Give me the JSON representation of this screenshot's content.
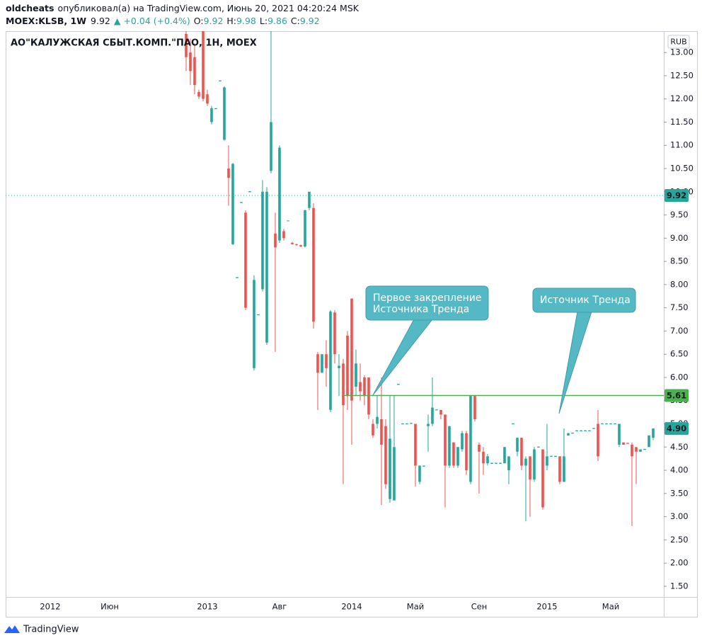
{
  "header": {
    "author": "oldcheats",
    "published": "опубликовал(а) на TradingView.com, Июнь 20, 2021 04:20:24 MSK",
    "symbol": "MOEX:KLSB, 1W",
    "last": "9.92",
    "change": "▲ +0.04 (+0.4%)",
    "ohlc": [
      {
        "key": "O:",
        "value": "9.92"
      },
      {
        "key": "H:",
        "value": "9.98"
      },
      {
        "key": "L:",
        "value": "9.86"
      },
      {
        "key": "C:",
        "value": "9.92"
      }
    ]
  },
  "footer": {
    "brand": "TradingView"
  },
  "chart_data": {
    "type": "candlestick",
    "title": "АО\"КАЛУЖСКАЯ СБЫТ.КОМП.\"ПАО, 1Н, MOEX",
    "currency": "RUB",
    "up_color": "#26a69a",
    "down_color": "#ef5350",
    "categories": [
      null,
      null,
      null,
      null,
      null,
      null,
      null,
      null,
      null,
      null,
      "2012",
      null,
      null,
      null,
      null,
      null,
      null,
      null,
      null,
      null,
      null,
      null,
      null,
      null,
      "Июн",
      null,
      null,
      null,
      null,
      null,
      null,
      null,
      null,
      null,
      null,
      null,
      null,
      null,
      null,
      null,
      null,
      null,
      null,
      null,
      null,
      null,
      null,
      "2013",
      null,
      null,
      null,
      null,
      null,
      null,
      null,
      null,
      null,
      null,
      null,
      null,
      null,
      null,
      null,
      null,
      "Авг",
      null,
      null,
      null,
      null,
      null,
      null,
      null,
      null,
      null,
      null,
      null,
      null,
      null,
      null,
      null,
      null,
      "2014",
      null,
      null,
      null,
      null,
      null,
      null,
      null,
      null,
      null,
      null,
      null,
      null,
      null,
      null,
      "Май",
      null,
      null,
      null,
      null,
      null,
      null,
      null,
      null,
      null,
      null,
      null,
      null,
      null,
      null,
      "Сен",
      null,
      null,
      null,
      null,
      null,
      null,
      null,
      null,
      null,
      null,
      null,
      null,
      null,
      null,
      null,
      "2015",
      null,
      null,
      null,
      null,
      null,
      null,
      null,
      null,
      null,
      null,
      null,
      null,
      null,
      null,
      "Май",
      null,
      null,
      null,
      null,
      null,
      null,
      null,
      null,
      null,
      null,
      null,
      null
    ],
    "open": [
      null,
      null,
      null,
      null,
      null,
      null,
      null,
      null,
      null,
      null,
      null,
      null,
      null,
      null,
      null,
      null,
      null,
      null,
      null,
      null,
      null,
      null,
      null,
      null,
      null,
      null,
      null,
      null,
      null,
      null,
      null,
      null,
      null,
      null,
      null,
      null,
      null,
      null,
      null,
      null,
      null,
      null,
      13.4,
      13.0,
      12.9,
      12.15,
      13.46,
      12.1,
      11.5,
      11.78,
      12.38,
      11.12,
      10.5,
      8.87,
      8.14,
      9.76,
      9.55,
      9.99,
      6.2,
      7.34,
      7.9,
      6.75,
      10.45,
      9.1,
      8.95,
      9.15,
      9.37,
      8.9,
      8.87,
      8.85,
      8.82,
      9.65,
      9.65,
      6.5,
      6.1,
      6.5,
      5.3,
      7.4,
      6.2,
      6.3,
      6.9,
      7.7,
      5.8,
      5.9,
      6.0,
      6.0,
      5.0,
      5.0,
      5.1,
      4.95,
      3.38,
      3.35,
      5.84,
      4.99,
      4.99,
      5.0,
      5.0,
      3.75,
      4.08,
      4.95,
      5.0,
      5.29,
      5.3,
      5.2,
      4.1,
      4.6,
      4.1,
      4.45,
      4.8,
      3.75,
      5.6,
      4.55,
      4.4,
      4.15,
      4.14,
      4.14,
      4.14,
      4.15,
      4.0,
      4.99,
      4.4,
      4.7,
      4.1,
      4.3,
      3.8,
      4.49,
      4.45,
      4.1,
      4.29,
      4.29,
      4.3,
      3.75,
      4.75,
      4.79,
      4.84,
      4.84,
      4.84,
      4.84,
      4.89,
      5.0,
      4.99,
      4.99,
      4.99,
      4.99,
      4.55,
      4.6,
      4.59,
      4.55,
      4.5,
      4.4,
      4.44,
      4.5,
      4.7,
      null,
      null
    ],
    "high": [
      null,
      null,
      null,
      null,
      null,
      null,
      null,
      null,
      null,
      null,
      null,
      null,
      null,
      null,
      null,
      null,
      null,
      null,
      null,
      null,
      null,
      null,
      null,
      null,
      null,
      null,
      null,
      null,
      null,
      null,
      null,
      null,
      null,
      null,
      null,
      null,
      null,
      null,
      null,
      null,
      null,
      null,
      13.46,
      13.3,
      13.2,
      12.2,
      13.46,
      12.2,
      11.85,
      11.8,
      12.4,
      12.27,
      11.0,
      10.62,
      8.16,
      9.78,
      9.6,
      10.01,
      8.2,
      7.36,
      10.25,
      10.1,
      13.46,
      9.55,
      11.0,
      9.2,
      9.38,
      8.92,
      8.88,
      8.86,
      9.62,
      10.0,
      9.75,
      6.55,
      6.5,
      6.8,
      7.45,
      7.45,
      6.5,
      6.4,
      7.0,
      7.7,
      6.6,
      6.3,
      6.05,
      6.0,
      5.1,
      5.6,
      6.0,
      5.1,
      5.6,
      5.6,
      5.86,
      5.01,
      5.01,
      5.02,
      5.0,
      4.1,
      4.1,
      5.2,
      6.0,
      5.31,
      5.3,
      5.2,
      4.95,
      4.6,
      4.5,
      4.85,
      4.85,
      5.6,
      5.6,
      4.6,
      4.5,
      4.35,
      4.16,
      4.16,
      4.16,
      4.5,
      4.3,
      5.01,
      4.7,
      4.7,
      4.3,
      4.3,
      4.5,
      4.51,
      4.45,
      5.0,
      4.31,
      4.31,
      4.3,
      4.9,
      4.8,
      4.81,
      4.86,
      4.86,
      4.86,
      4.86,
      4.91,
      5.3,
      5.01,
      5.01,
      5.01,
      5.01,
      5.0,
      4.6,
      4.59,
      4.6,
      4.5,
      4.45,
      4.46,
      4.75,
      4.9,
      null,
      null
    ],
    "low": [
      null,
      null,
      null,
      null,
      null,
      null,
      null,
      null,
      null,
      null,
      null,
      null,
      null,
      null,
      null,
      null,
      null,
      null,
      null,
      null,
      null,
      null,
      null,
      null,
      null,
      null,
      null,
      null,
      null,
      null,
      null,
      null,
      null,
      null,
      null,
      null,
      null,
      null,
      null,
      null,
      null,
      null,
      12.6,
      12.3,
      12.1,
      12.0,
      11.95,
      11.85,
      11.45,
      11.78,
      12.38,
      11.1,
      9.7,
      8.85,
      8.14,
      9.76,
      7.45,
      9.99,
      6.15,
      7.34,
      7.85,
      6.7,
      10.4,
      6.55,
      8.9,
      8.95,
      9.37,
      8.86,
      8.84,
      8.81,
      8.8,
      9.6,
      7.05,
      5.3,
      6.1,
      5.8,
      5.25,
      6.3,
      5.6,
      3.7,
      5.3,
      4.55,
      5.6,
      5.5,
      5.4,
      5.1,
      4.7,
      4.9,
      3.25,
      3.6,
      3.3,
      3.35,
      5.84,
      4.99,
      4.99,
      5.0,
      3.65,
      3.7,
      4.08,
      4.4,
      4.95,
      5.29,
      5.1,
      3.2,
      4.05,
      4.05,
      4.05,
      4.4,
      3.9,
      3.7,
      5.05,
      3.5,
      3.9,
      4.1,
      4.14,
      4.14,
      4.14,
      4.15,
      3.7,
      4.99,
      4.3,
      4.0,
      2.9,
      3.0,
      3.75,
      4.49,
      3.15,
      4.0,
      4.29,
      4.29,
      3.7,
      3.75,
      4.75,
      4.79,
      4.84,
      4.84,
      4.84,
      4.84,
      4.89,
      4.2,
      4.99,
      4.99,
      4.99,
      4.99,
      4.5,
      4.55,
      4.57,
      2.8,
      3.7,
      4.4,
      4.44,
      4.5,
      4.65,
      null,
      null
    ],
    "close": [
      null,
      null,
      null,
      null,
      null,
      null,
      null,
      null,
      null,
      null,
      null,
      null,
      null,
      null,
      null,
      null,
      null,
      null,
      null,
      null,
      null,
      null,
      null,
      null,
      null,
      null,
      null,
      null,
      null,
      null,
      null,
      null,
      null,
      null,
      null,
      null,
      null,
      null,
      null,
      null,
      null,
      null,
      12.9,
      12.6,
      12.3,
      12.05,
      12.0,
      11.9,
      11.8,
      11.8,
      12.4,
      12.25,
      10.3,
      10.6,
      8.16,
      9.78,
      7.5,
      10.01,
      8.1,
      7.36,
      10.0,
      10.0,
      11.5,
      8.8,
      10.95,
      9.0,
      9.38,
      8.87,
      8.85,
      8.82,
      9.6,
      10.0,
      7.2,
      6.1,
      6.5,
      6.2,
      7.42,
      6.5,
      6.25,
      5.4,
      5.6,
      5.5,
      6.3,
      5.7,
      5.6,
      5.2,
      4.75,
      5.15,
      4.55,
      3.7,
      4.68,
      4.5,
      5.86,
      5.01,
      5.01,
      5.02,
      4.1,
      4.1,
      4.1,
      5.0,
      5.35,
      5.31,
      5.2,
      4.1,
      4.95,
      4.1,
      4.5,
      4.8,
      4.0,
      5.6,
      5.1,
      4.4,
      4.15,
      4.3,
      4.16,
      4.16,
      4.16,
      4.5,
      4.3,
      5.01,
      4.7,
      4.1,
      4.25,
      3.8,
      4.45,
      4.51,
      3.2,
      4.3,
      4.31,
      4.31,
      3.75,
      4.3,
      4.8,
      4.81,
      4.86,
      4.86,
      4.86,
      4.86,
      4.91,
      4.3,
      5.01,
      5.01,
      5.01,
      5.01,
      5.0,
      4.55,
      4.57,
      4.3,
      4.4,
      4.45,
      4.46,
      4.75,
      4.9,
      null,
      null
    ],
    "ylim": [
      1.27,
      13.46
    ],
    "yticks": [
      {
        "value": 1.5,
        "label": "1.50"
      },
      {
        "value": 2,
        "label": "2.00"
      },
      {
        "value": 2.5,
        "label": "2.50"
      },
      {
        "value": 3,
        "label": "3.00"
      },
      {
        "value": 3.5,
        "label": "3.50"
      },
      {
        "value": 4,
        "label": "4.00"
      },
      {
        "value": 4.5,
        "label": "4.50"
      },
      {
        "value": 5,
        "label": "5.00"
      },
      {
        "value": 5.5,
        "label": "5.50"
      },
      {
        "value": 6,
        "label": "6.00"
      },
      {
        "value": 6.5,
        "label": "6.50"
      },
      {
        "value": 7,
        "label": "7.00"
      },
      {
        "value": 7.5,
        "label": "7.50"
      },
      {
        "value": 8,
        "label": "8.00"
      },
      {
        "value": 8.5,
        "label": "8.50"
      },
      {
        "value": 9,
        "label": "9.00"
      },
      {
        "value": 9.5,
        "label": "9.50"
      },
      {
        "value": 10,
        "label": "10.00"
      },
      {
        "value": 10.5,
        "label": "10.50"
      },
      {
        "value": 11,
        "label": "11.00"
      },
      {
        "value": 11.5,
        "label": "11.50"
      },
      {
        "value": 12,
        "label": "12.00"
      },
      {
        "value": 12.5,
        "label": "12.50"
      },
      {
        "value": 13,
        "label": "13.00"
      }
    ],
    "grid": false,
    "price_lines": [
      {
        "value": 9.92,
        "label": "9.92",
        "color": "#26a69a",
        "style": "dotted"
      },
      {
        "value": 5.61,
        "label": "5.61",
        "color": "#4caf50",
        "style": "solid",
        "from": 79
      },
      {
        "value": 4.9,
        "label": "4.90",
        "color": "#26a69a",
        "style": "none"
      }
    ],
    "annotations": [
      {
        "lines": [
          "Первое закрепление",
          "Источника Тренда"
        ]
      },
      {
        "lines": [
          "Источник Тренда"
        ]
      }
    ]
  }
}
